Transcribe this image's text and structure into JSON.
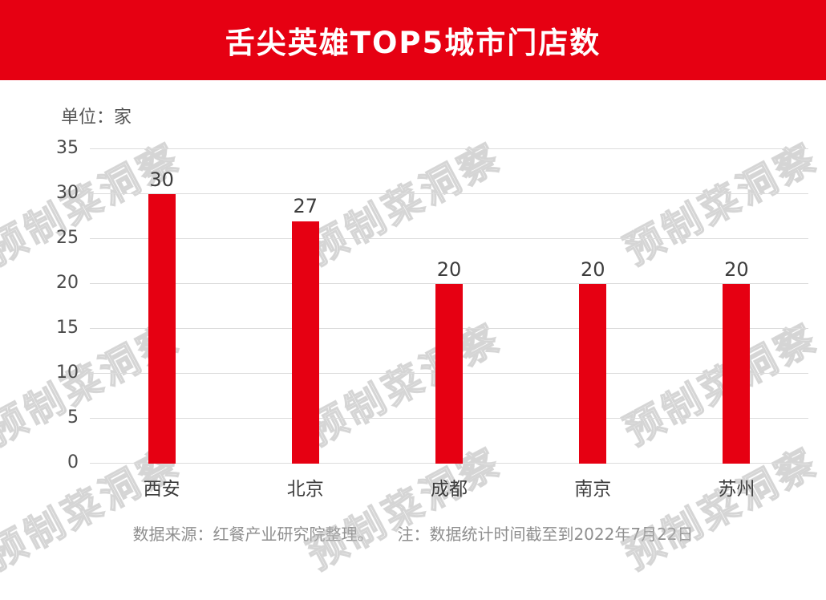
{
  "header": {
    "title": "舌尖英雄TOP5城市门店数"
  },
  "chart_data": {
    "type": "bar",
    "title": "舌尖英雄TOP5城市门店数",
    "unit_label": "单位：家",
    "categories": [
      "西安",
      "北京",
      "成都",
      "南京",
      "苏州"
    ],
    "values": [
      30,
      27,
      20,
      20,
      20
    ],
    "ylim": [
      0,
      35
    ],
    "yticks": [
      0,
      5,
      10,
      15,
      20,
      25,
      30,
      35
    ],
    "bar_color": "#e60012",
    "grid": true,
    "legend": false
  },
  "footer": {
    "note": "数据来源：红餐产业研究院整理。　　注：数据统计时间截至到2022年7月22日"
  },
  "watermark": {
    "text": "预制菜洞察"
  },
  "colors": {
    "accent": "#e60012",
    "gridline": "#dcdcdc"
  }
}
